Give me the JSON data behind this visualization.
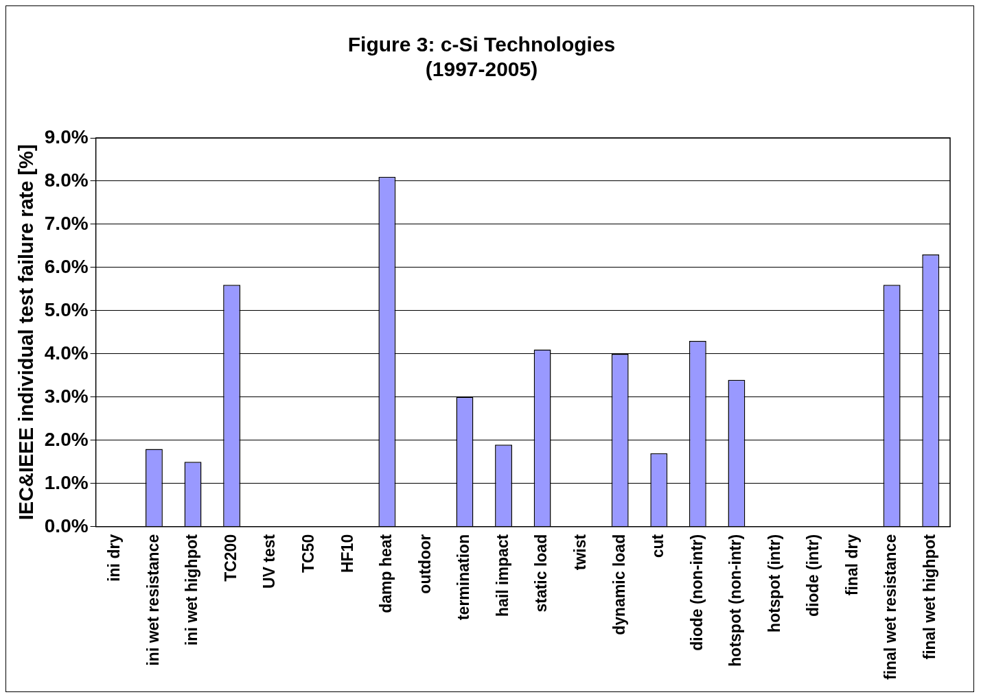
{
  "chart_data": {
    "type": "bar",
    "title": "Figure 3: c-Si Technologies\n(1997-2005)",
    "ylabel": "IEC&IEEE individual test failure rate [%]",
    "categories": [
      "ini dry",
      "ini wet resistance",
      "ini wet highpot",
      "TC200",
      "UV test",
      "TC50",
      "HF10",
      "damp heat",
      "outdoor",
      "termination",
      "hail impact",
      "static load",
      "twist",
      "dynamic load",
      "cut",
      "diode (non-intr)",
      "hotspot (non-intr)",
      "hotspot (intr)",
      "diode (intr)",
      "final dry",
      "final wet resistance",
      "final wet highpot"
    ],
    "values": [
      0,
      1.8,
      1.5,
      5.6,
      0,
      0,
      0,
      8.1,
      0,
      3.0,
      1.9,
      4.1,
      0,
      4.0,
      1.7,
      4.3,
      3.4,
      0,
      0,
      0,
      5.6,
      6.3
    ],
    "color": "#9999ff",
    "ylim": [
      0,
      9
    ],
    "yticks": [
      {
        "value": 0,
        "label": "0.0%"
      },
      {
        "value": 1,
        "label": "1.0%"
      },
      {
        "value": 2,
        "label": "2.0%"
      },
      {
        "value": 3,
        "label": "3.0%"
      },
      {
        "value": 4,
        "label": "4.0%"
      },
      {
        "value": 5,
        "label": "5.0%"
      },
      {
        "value": 6,
        "label": "6.0%"
      },
      {
        "value": 7,
        "label": "7.0%"
      },
      {
        "value": 8,
        "label": "8.0%"
      },
      {
        "value": 9,
        "label": "9.0%"
      }
    ],
    "grid": "y",
    "legend": false
  }
}
